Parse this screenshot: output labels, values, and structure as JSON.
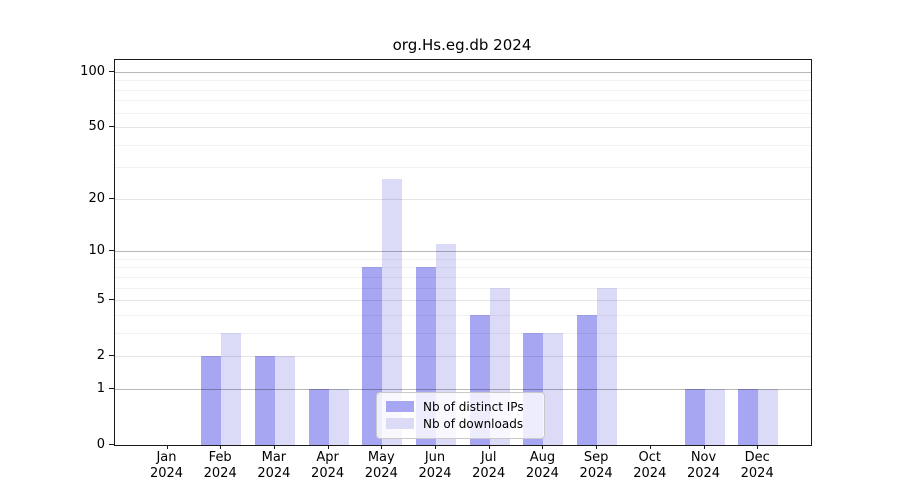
{
  "chart_data": {
    "type": "bar",
    "title": "org.Hs.eg.db 2024",
    "categories": [
      "Jan",
      "Feb",
      "Mar",
      "Apr",
      "May",
      "Jun",
      "Jul",
      "Aug",
      "Sep",
      "Oct",
      "Nov",
      "Dec"
    ],
    "x_year_label": "2024",
    "series": [
      {
        "name": "Nb of distinct IPs",
        "color": "#a6a6f2",
        "values": [
          0,
          2,
          2,
          1,
          8,
          8,
          4,
          3,
          4,
          0,
          1,
          1
        ]
      },
      {
        "name": "Nb of downloads",
        "color": "#dbdbf8",
        "values": [
          0,
          3,
          2,
          1,
          26,
          11,
          6,
          3,
          6,
          0,
          1,
          1
        ]
      }
    ],
    "y_axis": {
      "scale": "log1p",
      "major_ticks": [
        0,
        1,
        2,
        5,
        10,
        20,
        50,
        100
      ],
      "emphasized_ticks": [
        1,
        10,
        100
      ],
      "minor_ticks": [
        3,
        4,
        6,
        7,
        8,
        9,
        30,
        40,
        60,
        70,
        80,
        90
      ],
      "ylim": [
        0,
        100
      ]
    },
    "legend": {
      "position": "bottom-center"
    },
    "grid": true
  }
}
